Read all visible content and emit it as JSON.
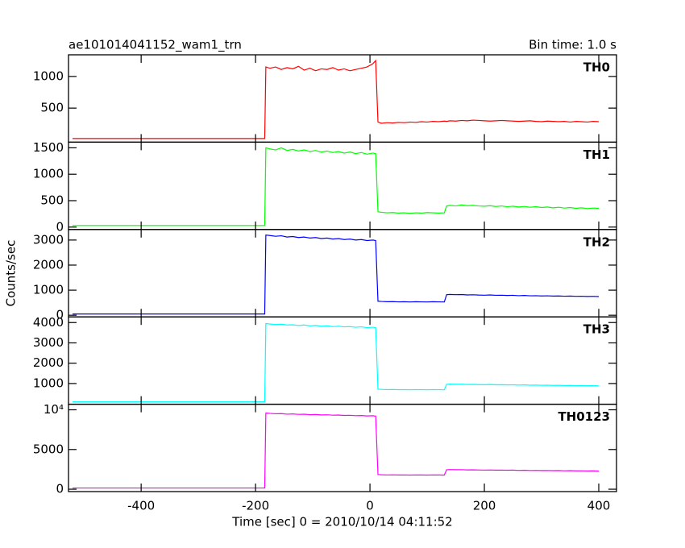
{
  "chart_data": {
    "type": "line",
    "title": "ae101014041152_wam1_trn",
    "subtitle": "Bin time: 1.0 s",
    "xlabel": "Time [sec] 0 = 2010/10/14 04:11:52",
    "ylabel": "Counts/sec",
    "xlim": [
      -527,
      431
    ],
    "xticks": [
      -400,
      -200,
      0,
      200,
      400
    ],
    "x": [
      -520,
      -400,
      -300,
      -200,
      -184,
      -182,
      -175,
      -165,
      -155,
      -145,
      -135,
      -125,
      -115,
      -105,
      -95,
      -85,
      -75,
      -65,
      -55,
      -45,
      -35,
      -25,
      -15,
      -5,
      5,
      10,
      14,
      20,
      30,
      40,
      50,
      60,
      70,
      80,
      90,
      100,
      110,
      120,
      130,
      134,
      140,
      150,
      160,
      170,
      180,
      190,
      200,
      210,
      220,
      230,
      240,
      250,
      260,
      270,
      280,
      290,
      300,
      310,
      320,
      330,
      340,
      350,
      360,
      370,
      380,
      390,
      400
    ],
    "series": [
      {
        "name": "TH0",
        "color": "#ff0000",
        "ylim": [
          -38,
          1342
        ],
        "yticks": [
          500,
          1000
        ],
        "values": [
          20,
          20,
          20,
          20,
          20,
          1150,
          1130,
          1150,
          1110,
          1140,
          1120,
          1160,
          1100,
          1130,
          1090,
          1120,
          1110,
          1140,
          1100,
          1120,
          1090,
          1110,
          1130,
          1150,
          1200,
          1250,
          280,
          260,
          270,
          265,
          275,
          270,
          280,
          275,
          285,
          280,
          290,
          285,
          295,
          290,
          300,
          295,
          305,
          300,
          310,
          305,
          300,
          295,
          300,
          305,
          300,
          295,
          290,
          295,
          300,
          290,
          285,
          295,
          290,
          285,
          290,
          280,
          290,
          285,
          280,
          290,
          285
        ]
      },
      {
        "name": "TH1",
        "color": "#00ff00",
        "ylim": [
          -46,
          1607
        ],
        "yticks": [
          0,
          500,
          1000,
          1500
        ],
        "values": [
          30,
          30,
          30,
          30,
          30,
          1500,
          1480,
          1460,
          1500,
          1450,
          1470,
          1440,
          1460,
          1430,
          1450,
          1420,
          1440,
          1410,
          1430,
          1400,
          1420,
          1390,
          1410,
          1380,
          1400,
          1390,
          290,
          280,
          270,
          275,
          265,
          270,
          260,
          270,
          265,
          275,
          270,
          265,
          270,
          400,
          410,
          400,
          420,
          405,
          410,
          400,
          395,
          405,
          390,
          400,
          385,
          395,
          380,
          390,
          375,
          385,
          370,
          380,
          365,
          375,
          360,
          370,
          355,
          365,
          350,
          360,
          355
        ]
      },
      {
        "name": "TH2",
        "color": "#0000ff",
        "ylim": [
          -65,
          3420
        ],
        "yticks": [
          0,
          1000,
          2000,
          3000
        ],
        "values": [
          50,
          50,
          50,
          50,
          50,
          3200,
          3180,
          3150,
          3170,
          3120,
          3140,
          3100,
          3120,
          3080,
          3100,
          3060,
          3080,
          3040,
          3060,
          3020,
          3040,
          3000,
          3020,
          2980,
          3000,
          2980,
          560,
          550,
          540,
          545,
          535,
          540,
          530,
          540,
          535,
          530,
          540,
          535,
          530,
          820,
          830,
          820,
          825,
          810,
          815,
          805,
          800,
          810,
          795,
          800,
          790,
          795,
          780,
          790,
          775,
          780,
          770,
          775,
          765,
          770,
          760,
          765,
          755,
          760,
          750,
          755,
          745
        ]
      },
      {
        "name": "TH3",
        "color": "#00ffff",
        "ylim": [
          -20,
          4280
        ],
        "yticks": [
          1000,
          2000,
          3000,
          4000
        ],
        "values": [
          100,
          100,
          100,
          100,
          100,
          3950,
          3930,
          3900,
          3920,
          3880,
          3890,
          3860,
          3880,
          3840,
          3860,
          3820,
          3840,
          3800,
          3820,
          3790,
          3800,
          3770,
          3790,
          3750,
          3770,
          3750,
          720,
          710,
          700,
          705,
          695,
          700,
          690,
          700,
          695,
          690,
          700,
          695,
          690,
          960,
          970,
          960,
          965,
          950,
          955,
          945,
          940,
          950,
          935,
          940,
          930,
          935,
          920,
          930,
          915,
          920,
          910,
          915,
          905,
          910,
          900,
          905,
          895,
          900,
          890,
          895,
          885
        ]
      },
      {
        "name": "TH0123",
        "color": "#ff00ff",
        "ylim": [
          -300,
          10700
        ],
        "yticks": [
          0,
          5000,
          {
            "value": 10000,
            "label": "10⁴"
          }
        ],
        "values": [
          150,
          150,
          150,
          150,
          150,
          9600,
          9550,
          9500,
          9520,
          9450,
          9480,
          9420,
          9440,
          9380,
          9400,
          9350,
          9370,
          9320,
          9340,
          9290,
          9310,
          9260,
          9280,
          9230,
          9250,
          9200,
          1850,
          1820,
          1800,
          1810,
          1790,
          1800,
          1780,
          1800,
          1790,
          1780,
          1800,
          1790,
          1780,
          2450,
          2470,
          2450,
          2460,
          2430,
          2440,
          2420,
          2410,
          2420,
          2400,
          2410,
          2390,
          2400,
          2370,
          2390,
          2360,
          2370,
          2350,
          2360,
          2340,
          2350,
          2320,
          2340,
          2310,
          2320,
          2300,
          2310,
          2290
        ]
      }
    ]
  }
}
